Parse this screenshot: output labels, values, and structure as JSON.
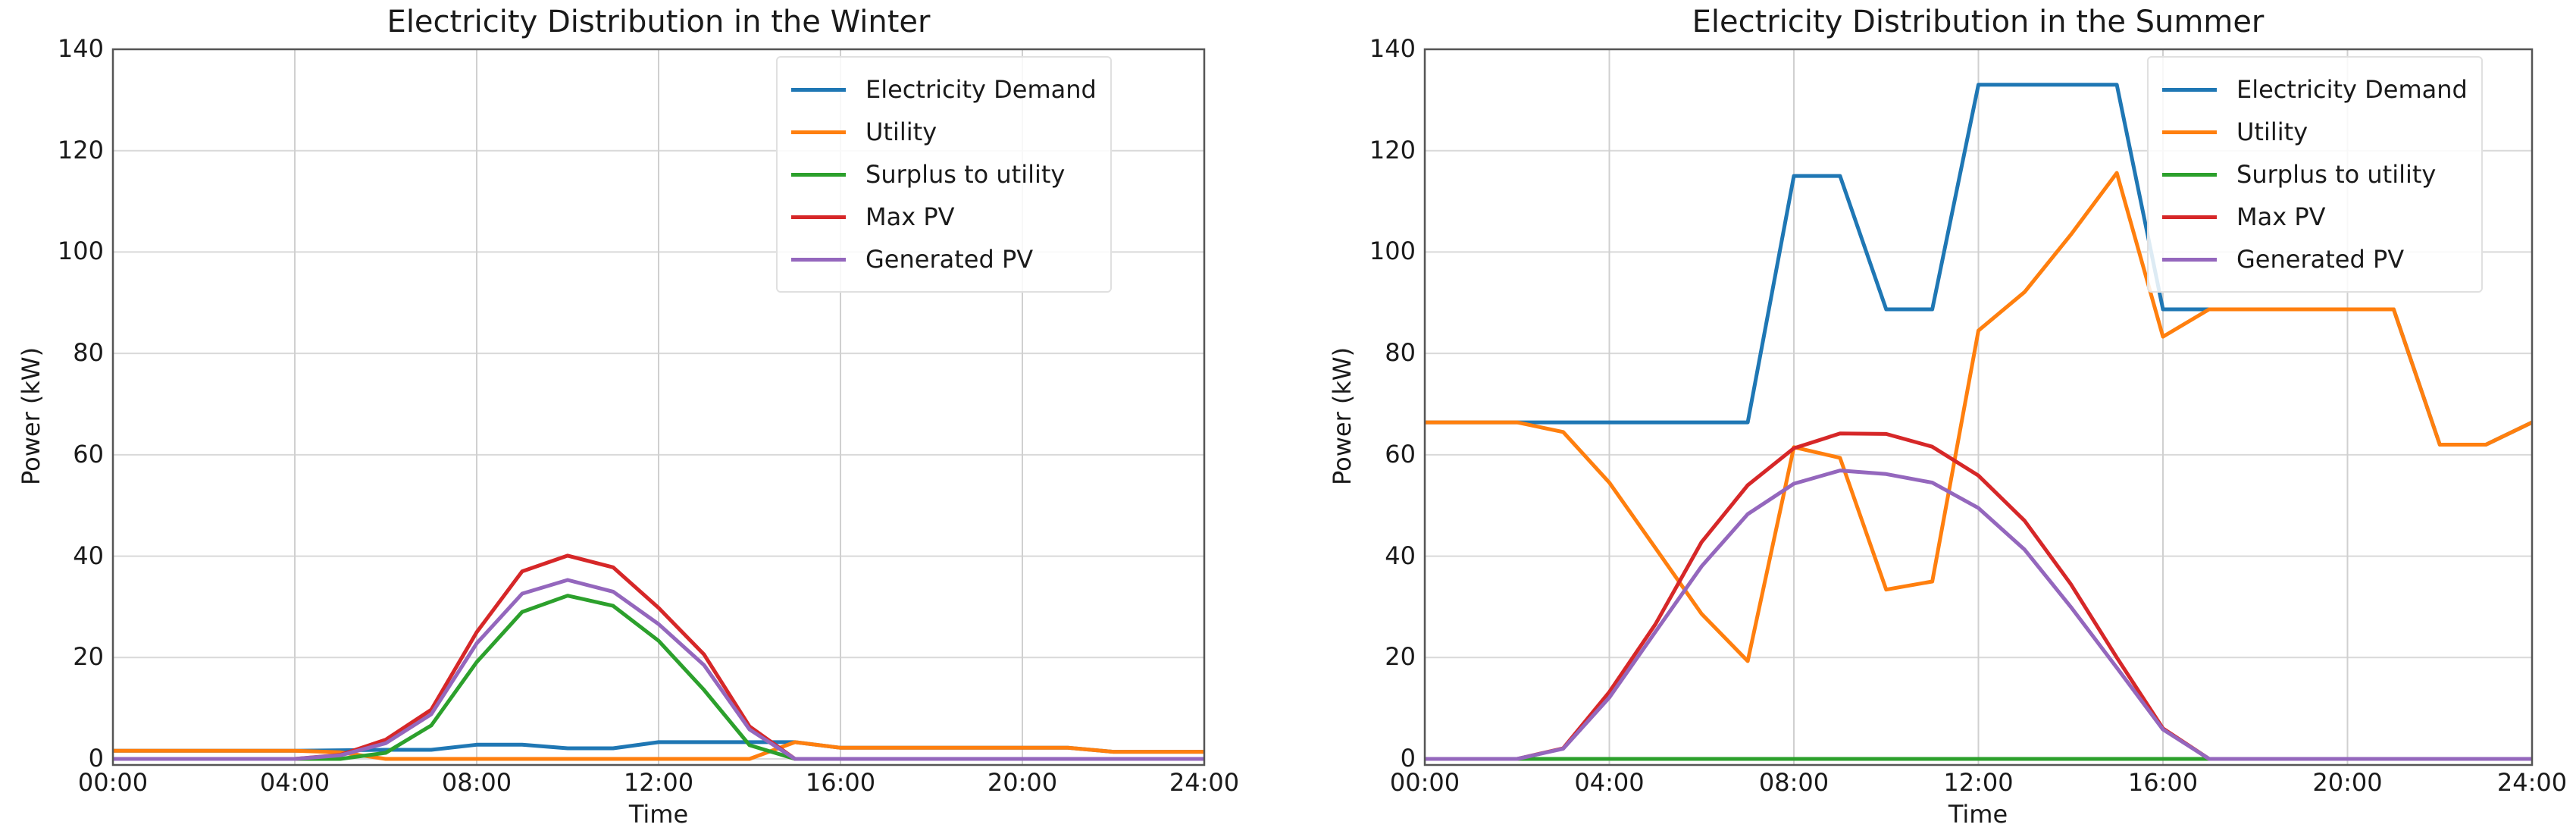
{
  "chart_data": [
    {
      "type": "line",
      "title": "Electricity Distribution in the Winter",
      "xlabel": "Time",
      "ylabel": "Power (kW)",
      "xlim": [
        0,
        24
      ],
      "ylim": [
        0,
        140
      ],
      "grid": true,
      "legend_position": "upper right",
      "x_ticks": [
        "00:00",
        "04:00",
        "08:00",
        "12:00",
        "16:00",
        "20:00",
        "24:00"
      ],
      "y_ticks": [
        0,
        20,
        40,
        60,
        80,
        100,
        120,
        140
      ],
      "x": [
        0,
        1,
        2,
        3,
        4,
        5,
        6,
        7,
        8,
        9,
        10,
        11,
        12,
        13,
        14,
        15,
        16,
        17,
        18,
        19,
        20,
        21,
        22,
        23,
        24
      ],
      "series": [
        {
          "name": "Electricity Demand",
          "color": "#1f77b4",
          "values": [
            1.6,
            1.6,
            1.6,
            1.6,
            1.6,
            1.7,
            1.8,
            1.8,
            2.8,
            2.8,
            2.1,
            2.1,
            3.3,
            3.3,
            3.3,
            3.3,
            2.2,
            2.2,
            2.2,
            2.2,
            2.2,
            2.2,
            1.4,
            1.4,
            1.4
          ]
        },
        {
          "name": "Utility",
          "color": "#ff7f0e",
          "values": [
            1.6,
            1.6,
            1.6,
            1.6,
            1.6,
            1.3,
            0,
            0,
            0,
            0,
            0,
            0,
            0,
            0,
            0,
            3.3,
            2.2,
            2.2,
            2.2,
            2.2,
            2.2,
            2.2,
            1.4,
            1.4,
            1.4
          ]
        },
        {
          "name": "Surplus to utility",
          "color": "#2ca02c",
          "values": [
            0,
            0,
            0,
            0,
            0,
            0,
            1.2,
            6.6,
            19.1,
            29.0,
            32.2,
            30.2,
            23.3,
            13.6,
            2.7,
            0,
            0,
            0,
            0,
            0,
            0,
            0,
            0,
            0,
            0
          ]
        },
        {
          "name": "Max PV",
          "color": "#d62728",
          "values": [
            0,
            0,
            0,
            0,
            0,
            0.8,
            3.8,
            9.7,
            25.0,
            37.0,
            40.1,
            37.8,
            29.8,
            20.6,
            6.4,
            0,
            0,
            0,
            0,
            0,
            0,
            0,
            0,
            0,
            0
          ]
        },
        {
          "name": "Generated PV",
          "color": "#9467bd",
          "values": [
            0,
            0,
            0,
            0,
            0,
            0.7,
            3.1,
            8.8,
            22.8,
            32.6,
            35.3,
            33.0,
            26.6,
            18.5,
            5.8,
            0,
            0,
            0,
            0,
            0,
            0,
            0,
            0,
            0,
            0
          ]
        }
      ]
    },
    {
      "type": "line",
      "title": "Electricity Distribution in the Summer",
      "xlabel": "Time",
      "ylabel": "Power (kW)",
      "xlim": [
        0,
        24
      ],
      "ylim": [
        0,
        140
      ],
      "grid": true,
      "legend_position": "upper right",
      "x_ticks": [
        "00:00",
        "04:00",
        "08:00",
        "12:00",
        "16:00",
        "20:00",
        "24:00"
      ],
      "y_ticks": [
        0,
        20,
        40,
        60,
        80,
        100,
        120,
        140
      ],
      "x": [
        0,
        1,
        2,
        3,
        4,
        5,
        6,
        7,
        8,
        9,
        10,
        11,
        12,
        13,
        14,
        15,
        16,
        17,
        18,
        19,
        20,
        21,
        22,
        23,
        24
      ],
      "series": [
        {
          "name": "Electricity Demand",
          "color": "#1f77b4",
          "values": [
            66.4,
            66.4,
            66.4,
            66.4,
            66.4,
            66.4,
            66.4,
            66.4,
            115,
            115,
            88.7,
            88.7,
            133,
            133,
            133,
            133,
            88.7,
            88.7,
            88.7,
            88.7,
            88.7,
            88.7,
            62,
            62,
            66.4
          ]
        },
        {
          "name": "Utility",
          "color": "#ff7f0e",
          "values": [
            66.4,
            66.4,
            66.4,
            64.5,
            54.5,
            41.6,
            28.6,
            19.3,
            61.5,
            59.4,
            33.4,
            35.0,
            84.5,
            92.1,
            103.4,
            115.6,
            83.3,
            88.7,
            88.7,
            88.7,
            88.7,
            88.7,
            62,
            62,
            66.4
          ]
        },
        {
          "name": "Surplus to utility",
          "color": "#2ca02c",
          "values": [
            0,
            0,
            0,
            0,
            0,
            0,
            0,
            0,
            0,
            0,
            0,
            0,
            0,
            0,
            0,
            0,
            0,
            0,
            0,
            0,
            0,
            0,
            0,
            0,
            0
          ]
        },
        {
          "name": "Max PV",
          "color": "#d62728",
          "values": [
            0,
            0,
            0,
            2.1,
            13.2,
            26.6,
            42.8,
            54.0,
            61.3,
            64.2,
            64.1,
            61.6,
            55.9,
            47.0,
            34.5,
            20.0,
            6.0,
            0,
            0,
            0,
            0,
            0,
            0,
            0,
            0
          ]
        },
        {
          "name": "Generated PV",
          "color": "#9467bd",
          "values": [
            0,
            0,
            0,
            2.0,
            12.1,
            25.1,
            38.0,
            48.3,
            54.3,
            56.9,
            56.2,
            54.5,
            49.5,
            41.3,
            30.0,
            18.0,
            5.8,
            0,
            0,
            0,
            0,
            0,
            0,
            0,
            0
          ]
        }
      ]
    }
  ]
}
